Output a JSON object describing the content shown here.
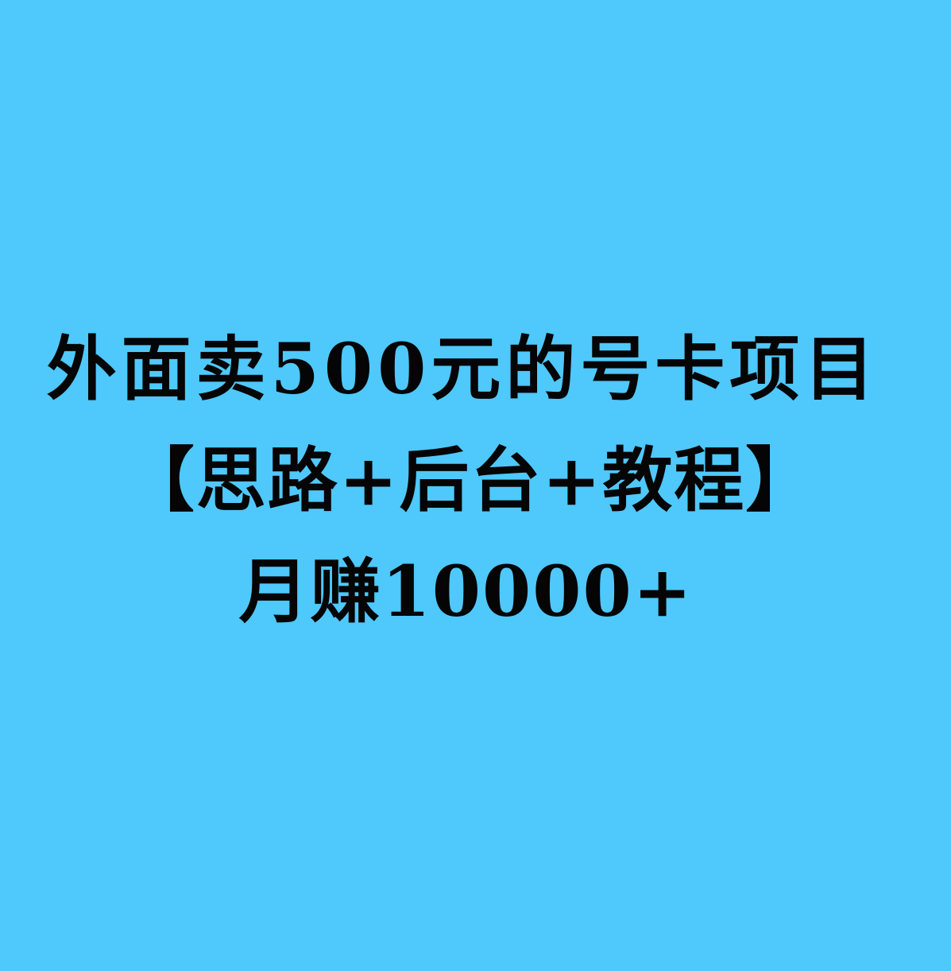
{
  "poster": {
    "background_color": "#4fc8fc",
    "text_color": "#050505",
    "lines": [
      "外面卖500元的号卡项目",
      "【思路+后台+教程】",
      "月赚10000+"
    ]
  }
}
